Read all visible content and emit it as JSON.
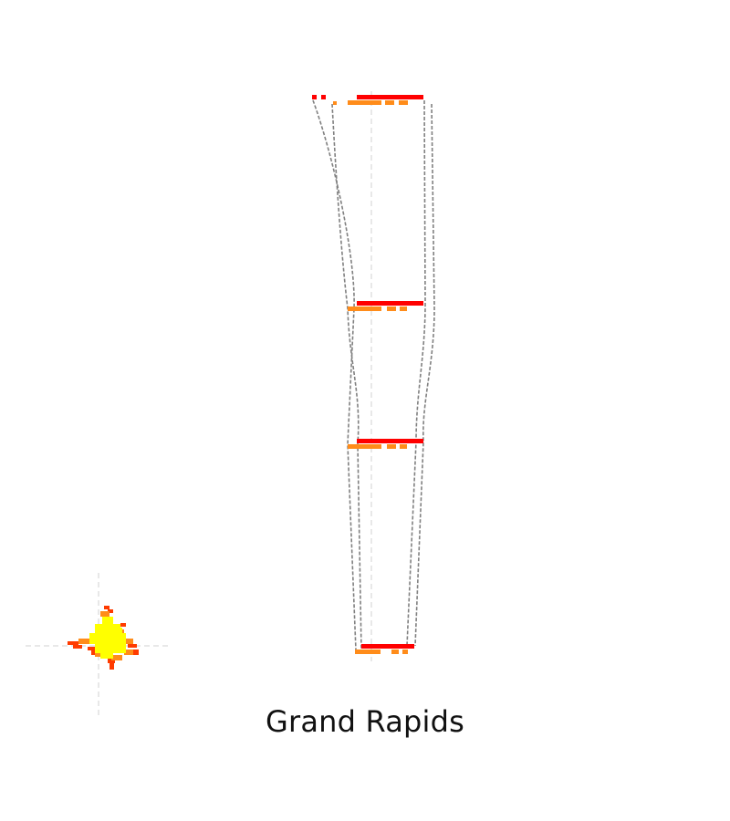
{
  "title": "Grand Rapids",
  "colors": {
    "background": "#ffffff",
    "top_layer": "#ff0000",
    "bottom_layer": "#ff8c1a",
    "highlight": "#ffff00",
    "connector": "#808080",
    "axis_guide": "#d0d0d0"
  },
  "chart_data": {
    "type": "diagram",
    "levels": [
      {
        "level": 1
      },
      {
        "level": 2
      },
      {
        "level": 3
      },
      {
        "level": 4
      }
    ],
    "footprint_glyph": {
      "icon": "city-footprint-icon"
    }
  }
}
